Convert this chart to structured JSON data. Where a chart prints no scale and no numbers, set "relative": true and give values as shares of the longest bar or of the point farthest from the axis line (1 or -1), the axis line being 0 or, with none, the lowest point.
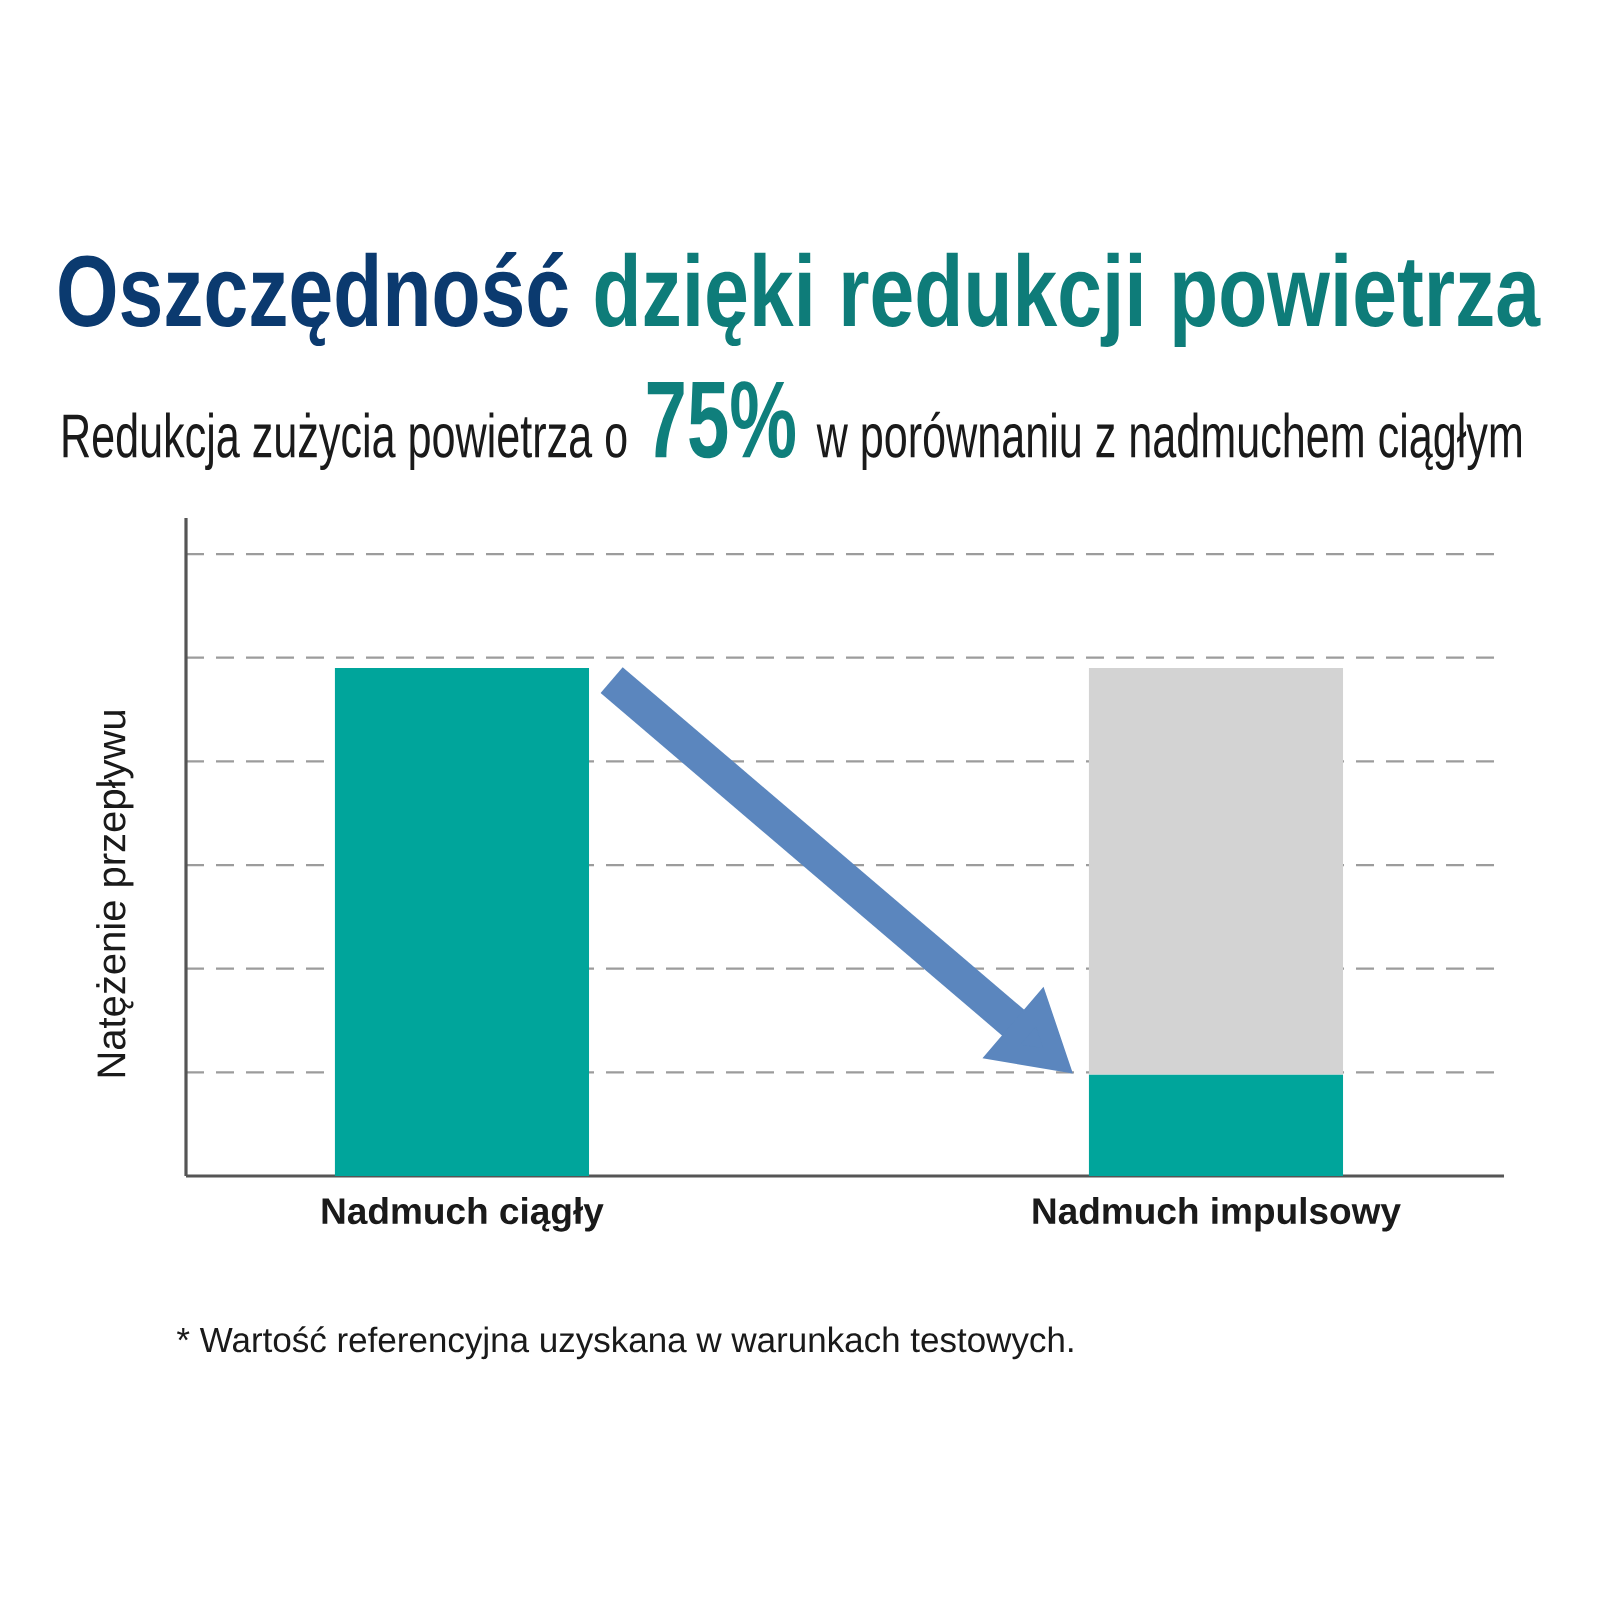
{
  "chart_data": {
    "type": "bar",
    "title": "Oszczędność dzięki redukcji powietrza",
    "subtitle": "Redukcja zużycia powietrza o **75%** w porównaniu z nadmuchem ciągłym",
    "ylabel": "Natężenie przepływu",
    "categories": [
      "Nadmuch ciągły",
      "Nadmuch impulsowy"
    ],
    "series": [
      {
        "color": "#00a59b",
        "values": [
          1,
          0.2
        ]
      },
      {
        "color": "#d3d3d3",
        "values": [
          null,
          0.8
        ]
      }
    ],
    "stacked": true,
    "relative": true,
    "grid": "y",
    "annotations": [
      "* Wartość referencyjna uzyskana w warunkach testowych."
    ]
  }
}
